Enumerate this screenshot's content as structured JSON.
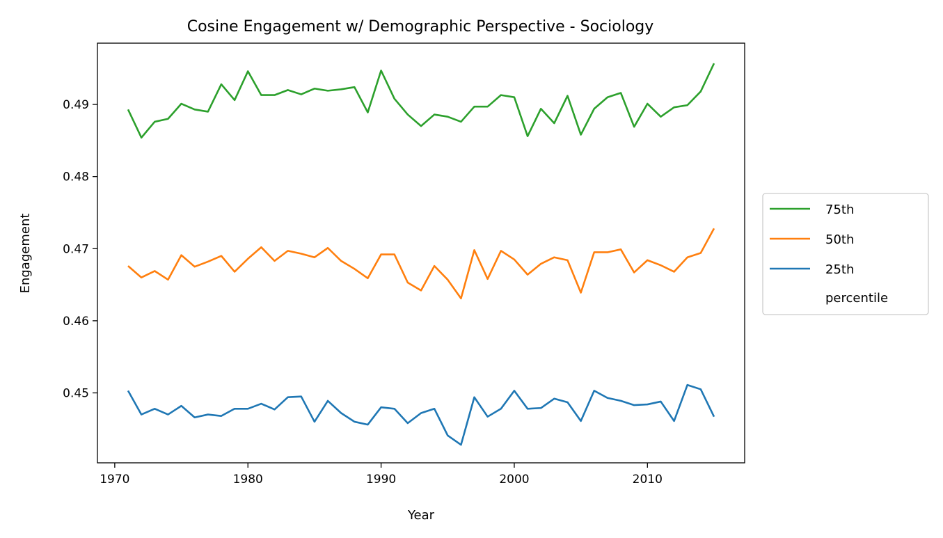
{
  "chart_data": {
    "type": "line",
    "title": "Cosine Engagement w/ Demographic Perspective - Sociology",
    "xlabel": "Year",
    "ylabel": "Engagement",
    "xlim": [
      1968.7,
      2017.3
    ],
    "ylim": [
      0.4403,
      0.4985
    ],
    "xticks": [
      1970,
      1980,
      1990,
      2000,
      2010
    ],
    "yticks": [
      0.45,
      0.46,
      0.47,
      0.48,
      0.49
    ],
    "ytick_labels": [
      "0.45",
      "0.46",
      "0.47",
      "0.48",
      "0.49"
    ],
    "grid": false,
    "legend_position": "right-outside",
    "legend_title": "percentile",
    "x": [
      1971,
      1972,
      1973,
      1974,
      1975,
      1976,
      1977,
      1978,
      1979,
      1980,
      1981,
      1982,
      1983,
      1984,
      1985,
      1986,
      1987,
      1988,
      1989,
      1990,
      1991,
      1992,
      1993,
      1994,
      1995,
      1996,
      1997,
      1998,
      1999,
      2000,
      2001,
      2002,
      2003,
      2004,
      2005,
      2006,
      2007,
      2008,
      2009,
      2010,
      2011,
      2012,
      2013,
      2014,
      2015
    ],
    "series": [
      {
        "name": "75th",
        "color": "#2ca02c",
        "values": [
          0.4893,
          0.4854,
          0.4876,
          0.488,
          0.4901,
          0.4893,
          0.489,
          0.4928,
          0.4906,
          0.4946,
          0.4913,
          0.4913,
          0.492,
          0.4914,
          0.4922,
          0.4919,
          0.4921,
          0.4924,
          0.4889,
          0.4947,
          0.4908,
          0.4886,
          0.487,
          0.4886,
          0.4883,
          0.4876,
          0.4897,
          0.4897,
          0.4913,
          0.491,
          0.4856,
          0.4894,
          0.4874,
          0.4912,
          0.4858,
          0.4894,
          0.491,
          0.4916,
          0.4869,
          0.4901,
          0.4883,
          0.4896,
          0.4899,
          0.4918,
          0.4957
        ]
      },
      {
        "name": "50th",
        "color": "#ff7f0e",
        "values": [
          0.4676,
          0.466,
          0.4669,
          0.4657,
          0.4691,
          0.4675,
          0.4682,
          0.469,
          0.4668,
          0.4686,
          0.4702,
          0.4683,
          0.4697,
          0.4693,
          0.4688,
          0.4701,
          0.4683,
          0.4672,
          0.4659,
          0.4692,
          0.4692,
          0.4653,
          0.4642,
          0.4676,
          0.4657,
          0.4631,
          0.4698,
          0.4658,
          0.4697,
          0.4685,
          0.4664,
          0.4679,
          0.4688,
          0.4684,
          0.4639,
          0.4695,
          0.4695,
          0.4699,
          0.4667,
          0.4684,
          0.4677,
          0.4668,
          0.4688,
          0.4694,
          0.4728
        ]
      },
      {
        "name": "25th",
        "color": "#1f77b4",
        "values": [
          0.4503,
          0.447,
          0.4478,
          0.447,
          0.4482,
          0.4466,
          0.447,
          0.4468,
          0.4478,
          0.4478,
          0.4485,
          0.4477,
          0.4494,
          0.4495,
          0.446,
          0.4489,
          0.4472,
          0.446,
          0.4456,
          0.448,
          0.4478,
          0.4458,
          0.4472,
          0.4478,
          0.4441,
          0.4428,
          0.4494,
          0.4467,
          0.4478,
          0.4503,
          0.4478,
          0.4479,
          0.4492,
          0.4487,
          0.4461,
          0.4503,
          0.4493,
          0.4489,
          0.4483,
          0.4484,
          0.4488,
          0.4461,
          0.4511,
          0.4505,
          0.4467
        ]
      }
    ]
  }
}
